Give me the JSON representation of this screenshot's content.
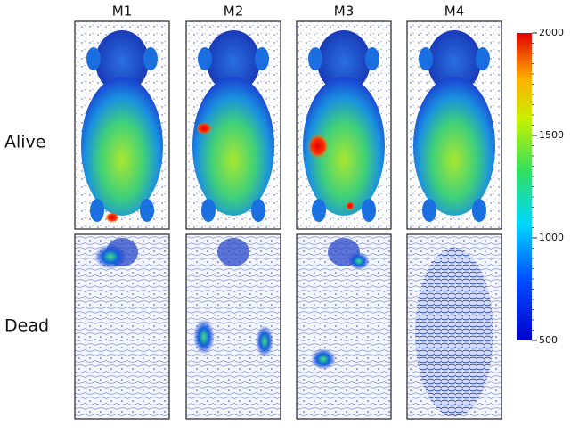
{
  "columns": [
    "M1",
    "M2",
    "M3",
    "M4"
  ],
  "rows": [
    "Alive",
    "Dead"
  ],
  "colorbar": {
    "range": [
      500,
      2000
    ],
    "ticks": [
      500,
      1000,
      1500,
      2000
    ]
  }
}
